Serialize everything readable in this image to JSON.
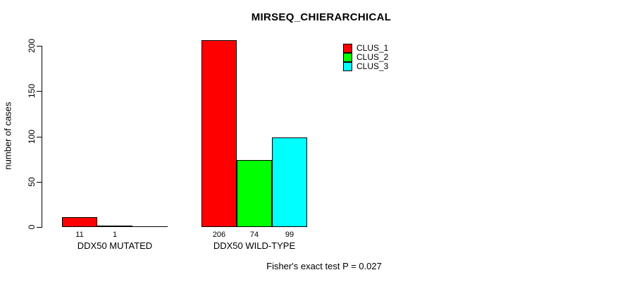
{
  "chart_data": {
    "type": "bar",
    "title": "MIRSEQ_CHIERARCHICAL",
    "ylabel": "number of cases",
    "xlabel": "",
    "ylim": [
      0,
      200
    ],
    "yticks": [
      0,
      50,
      100,
      150,
      200
    ],
    "grid": false,
    "background": "#ffffff",
    "categories": [
      "DDX50 MUTATED",
      "DDX50 WILD-TYPE"
    ],
    "series": [
      {
        "name": "CLUS_1",
        "color": "#ff0000",
        "values": [
          11,
          206
        ]
      },
      {
        "name": "CLUS_2",
        "color": "#00ff00",
        "values": [
          1,
          74
        ]
      },
      {
        "name": "CLUS_3",
        "color": "#00ffff",
        "values": [
          0,
          99
        ]
      }
    ],
    "bar_value_labels": [
      [
        "11",
        "1",
        ""
      ],
      [
        "206",
        "74",
        "99"
      ]
    ],
    "legend": {
      "position": "top-right",
      "entries": [
        "CLUS_1",
        "CLUS_2",
        "CLUS_3"
      ]
    },
    "annotation": "Fisher's exact test P = 0.027"
  }
}
